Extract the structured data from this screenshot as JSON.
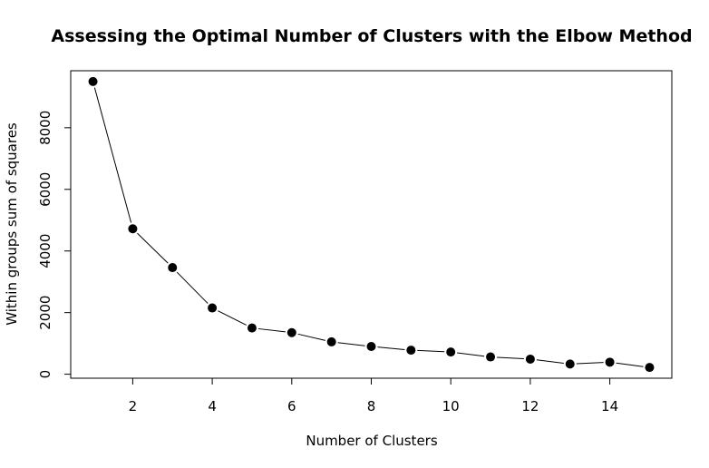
{
  "chart_data": {
    "type": "line",
    "title": "Assessing the Optimal Number of Clusters with the Elbow Method",
    "xlabel": "Number of Clusters",
    "ylabel": "Within groups sum of squares",
    "xlim": [
      0.44,
      15.56
    ],
    "ylim": [
      -130,
      9850
    ],
    "x_ticks": [
      2,
      4,
      6,
      8,
      10,
      12,
      14
    ],
    "y_ticks": [
      0,
      2000,
      4000,
      6000,
      8000
    ],
    "grid": false,
    "legend": "none",
    "series": [
      {
        "x": [
          1,
          2,
          3,
          4,
          5,
          6,
          7,
          8,
          9,
          10,
          11,
          12,
          13,
          14,
          15
        ],
        "values": [
          9500,
          4720,
          3460,
          2150,
          1500,
          1350,
          1050,
          900,
          780,
          720,
          560,
          490,
          330,
          390,
          220
        ]
      }
    ],
    "colors": {
      "line": "#000000",
      "marker": "#000000",
      "axis": "#000000"
    }
  }
}
